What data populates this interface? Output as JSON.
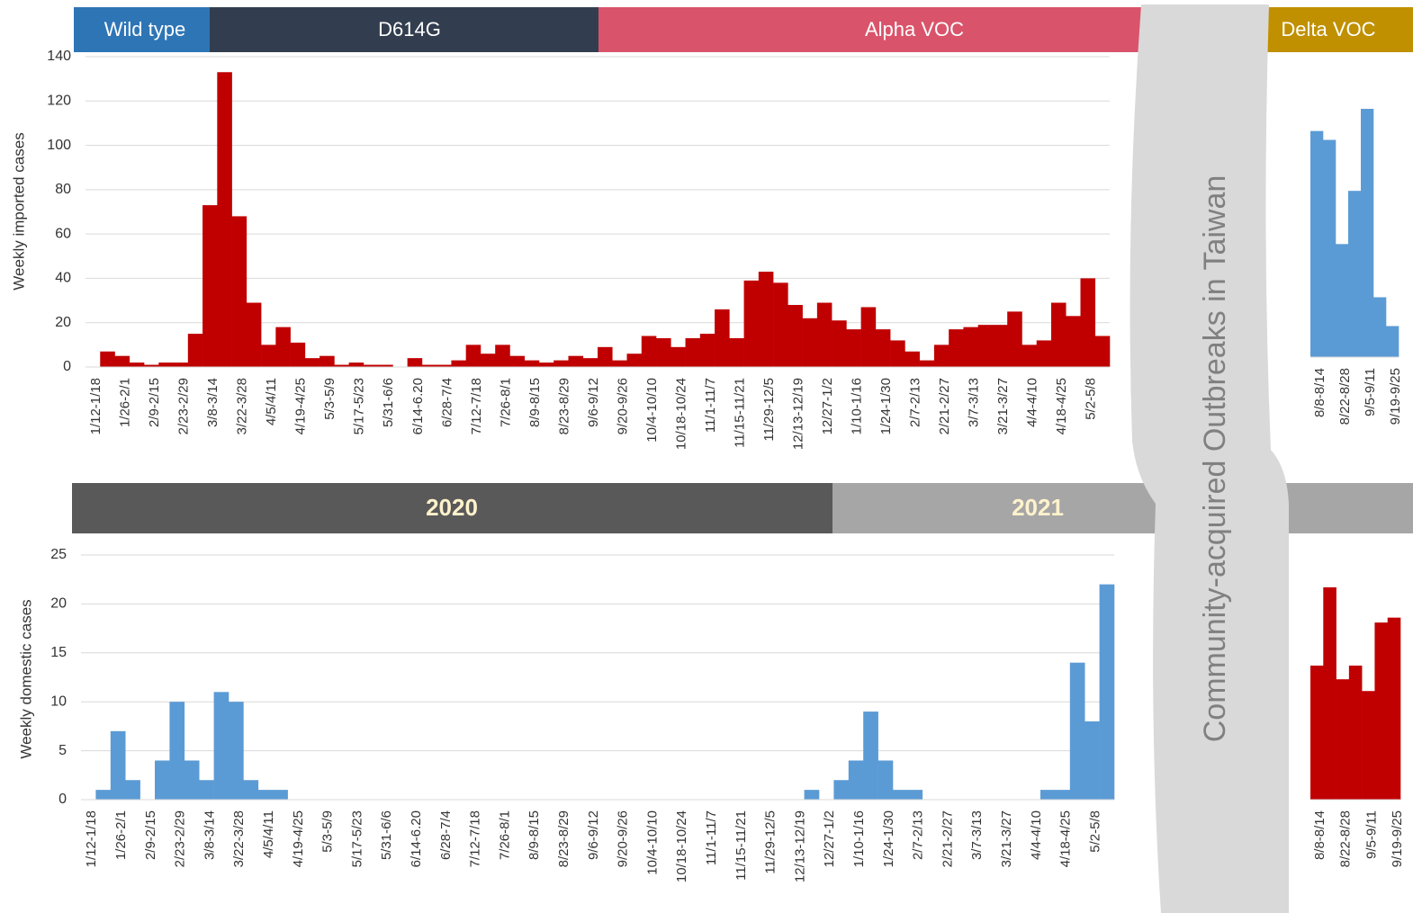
{
  "banners": {
    "variants": [
      "Wild type",
      "D614G",
      "Alpha VOC",
      "Delta VOC"
    ],
    "years": [
      "2020",
      "2021"
    ],
    "outbreak": "Community-acquired Outbreaks in Taiwan"
  },
  "chart_data": [
    {
      "type": "bar",
      "y_label": "Weekly imported cases",
      "color": "#c00000",
      "grid": true,
      "categories": [
        "1/12-1/18",
        null,
        "1/26-2/1",
        null,
        "2/9-2/15",
        null,
        "2/23-2/29",
        null,
        "3/8-3/14",
        null,
        "3/22-3/28",
        null,
        "4/5/4/11",
        null,
        "4/19-4/25",
        null,
        "5/3-5/9",
        null,
        "5/17-5/23",
        null,
        "5/31-6/6",
        null,
        "6/14-6.20",
        null,
        "6/28-7/4",
        null,
        "7/12-7/18",
        null,
        "7/26-8/1",
        null,
        "8/9-8/15",
        null,
        "8/23-8/29",
        null,
        "9/6-9/12",
        null,
        "9/20-9/26",
        null,
        "10/4-10/10",
        null,
        "10/18-10/24",
        null,
        "11/1-11/7",
        null,
        "11/15-11/21",
        null,
        "11/29-12/5",
        null,
        "12/13-12/19",
        null,
        "12/27-1/2",
        null,
        "1/10-1/16",
        null,
        "1/24-1/30",
        null,
        "2/7-2/13",
        null,
        "2/21-2/27",
        null,
        "3/7-3/13",
        null,
        "3/21-3/27",
        null,
        "4/4-4/10",
        null,
        "4/18-4/25",
        null,
        "5/2-5/8",
        null
      ],
      "values": [
        0,
        7,
        5,
        2,
        1,
        2,
        2,
        15,
        73,
        133,
        68,
        29,
        10,
        18,
        11,
        4,
        5,
        1,
        2,
        1,
        1,
        0,
        4,
        1,
        1,
        3,
        10,
        6,
        10,
        5,
        3,
        2,
        3,
        5,
        4,
        9,
        3,
        6,
        14,
        13,
        9,
        13,
        15,
        26,
        13,
        39,
        43,
        38,
        28,
        22,
        29,
        21,
        17,
        27,
        17,
        12,
        7,
        3,
        10,
        17,
        18,
        19,
        19,
        25,
        10,
        12,
        29,
        23,
        40,
        14
      ],
      "ylim": [
        0,
        140
      ],
      "yticks": [
        0,
        20,
        40,
        60,
        80,
        100,
        120,
        140
      ]
    },
    {
      "type": "bar",
      "y_label": "Weekly domestic cases",
      "color": "#5b9bd5",
      "grid": true,
      "categories": [
        "1/12-1/18",
        null,
        "1/26-2/1",
        null,
        "2/9-2/15",
        null,
        "2/23-2/29",
        null,
        "3/8-3/14",
        null,
        "3/22-3/28",
        null,
        "4/5/4/11",
        null,
        "4/19-4/25",
        null,
        "5/3-5/9",
        null,
        "5/17-5/23",
        null,
        "5/31-6/6",
        null,
        "6/14-6.20",
        null,
        "6/28-7/4",
        null,
        "7/12-7/18",
        null,
        "7/26-8/1",
        null,
        "8/9-8/15",
        null,
        "8/23-8/29",
        null,
        "9/6-9/12",
        null,
        "9/20-9/26",
        null,
        "10/4-10/10",
        null,
        "10/18-10/24",
        null,
        "11/1-11/7",
        null,
        "11/15-11/21",
        null,
        "11/29-12/5",
        null,
        "12/13-12/19",
        null,
        "12/27-1/2",
        null,
        "1/10-1/16",
        null,
        "1/24-1/30",
        null,
        "2/7-2/13",
        null,
        "2/21-2/27",
        null,
        "3/7-3/13",
        null,
        "3/21-3/27",
        null,
        "4/4-4/10",
        null,
        "4/18-4/25",
        null,
        "5/2-5/8",
        null
      ],
      "values": [
        0,
        1,
        7,
        2,
        0,
        4,
        10,
        4,
        2,
        11,
        10,
        2,
        1,
        1,
        0,
        0,
        0,
        0,
        0,
        0,
        0,
        0,
        0,
        0,
        0,
        0,
        0,
        0,
        0,
        0,
        0,
        0,
        0,
        0,
        0,
        0,
        0,
        0,
        0,
        0,
        0,
        0,
        0,
        0,
        0,
        0,
        0,
        0,
        0,
        1,
        0,
        2,
        4,
        9,
        4,
        1,
        1,
        0,
        0,
        0,
        0,
        0,
        0,
        0,
        0,
        1,
        1,
        14,
        8,
        22
      ],
      "ylim": [
        0,
        25
      ],
      "yticks": [
        0,
        5,
        10,
        15,
        20,
        25
      ]
    },
    {
      "type": "bar",
      "color": "#5b9bd5",
      "categories": [
        "8/8-8/14",
        null,
        "8/22-8/28",
        null,
        "9/5-9/11",
        null,
        "9/19-9/25"
      ],
      "values": [
        102,
        98,
        51,
        75,
        112,
        27,
        14
      ],
      "ylim": [
        0,
        140
      ]
    },
    {
      "type": "bar",
      "color": "#c00000",
      "categories": [
        "8/8-8/14",
        null,
        "8/22-8/28",
        null,
        "9/5-9/11",
        null,
        "9/19-9/25"
      ],
      "values": [
        13.7,
        21.7,
        12.3,
        13.7,
        11.1,
        18.1,
        18.6
      ],
      "ylim": [
        0,
        25
      ]
    }
  ]
}
